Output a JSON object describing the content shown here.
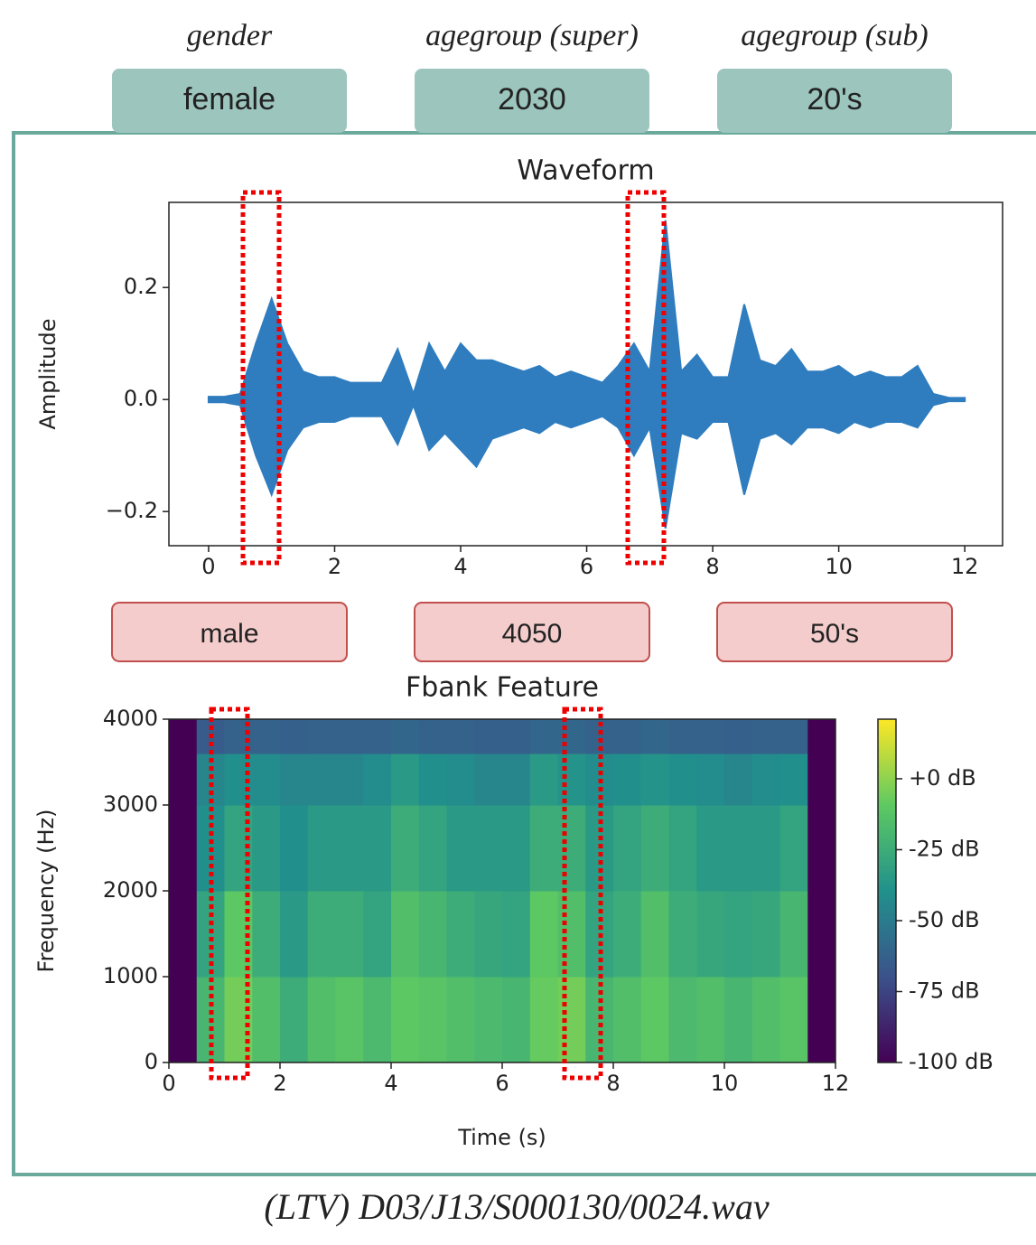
{
  "labels": [
    {
      "name": "gender",
      "value": "female"
    },
    {
      "name": "agegroup (super)",
      "value": "2030"
    },
    {
      "name": "agegroup (sub)",
      "value": "20's"
    }
  ],
  "predictions": [
    "male",
    "4050",
    "50's"
  ],
  "caption": "(LTV) D03/J13/S000130/0024.wav",
  "chart_data": [
    {
      "type": "area",
      "title": "Waveform",
      "y_label": "Amplitude",
      "x": [
        0,
        0.25,
        0.5,
        0.75,
        1,
        1.25,
        1.5,
        1.75,
        2,
        2.25,
        2.5,
        2.75,
        3,
        3.25,
        3.5,
        3.75,
        4,
        4.25,
        4.5,
        4.75,
        5,
        5.25,
        5.5,
        5.75,
        6,
        6.25,
        6.5,
        6.75,
        7,
        7.25,
        7.5,
        7.75,
        8,
        8.25,
        8.5,
        8.75,
        9,
        9.25,
        9.5,
        9.75,
        10,
        10.25,
        10.5,
        10.75,
        11,
        11.25,
        11.5,
        11.75,
        12
      ],
      "series": [
        {
          "color": "#2f7dbf",
          "values": [
            0.005,
            0.005,
            0.01,
            0.1,
            0.18,
            0.1,
            0.05,
            0.04,
            0.04,
            0.03,
            0.03,
            0.03,
            0.09,
            0.01,
            0.1,
            0.05,
            0.1,
            0.07,
            0.07,
            0.06,
            0.05,
            0.06,
            0.04,
            0.05,
            0.04,
            0.03,
            0.06,
            0.1,
            0.05,
            0.32,
            0.05,
            0.08,
            0.04,
            0.04,
            0.17,
            0.07,
            0.06,
            0.09,
            0.05,
            0.05,
            0.06,
            0.04,
            0.05,
            0.04,
            0.04,
            0.06,
            0.01,
            0.003,
            0.003
          ]
        },
        {
          "color": "#2f7dbf",
          "values": [
            -0.005,
            -0.005,
            -0.01,
            -0.1,
            -0.17,
            -0.09,
            -0.05,
            -0.04,
            -0.04,
            -0.03,
            -0.03,
            -0.03,
            -0.08,
            -0.01,
            -0.09,
            -0.06,
            -0.09,
            -0.12,
            -0.07,
            -0.06,
            -0.05,
            -0.06,
            -0.04,
            -0.05,
            -0.04,
            -0.03,
            -0.05,
            -0.1,
            -0.05,
            -0.23,
            -0.06,
            -0.07,
            -0.04,
            -0.04,
            -0.17,
            -0.07,
            -0.06,
            -0.08,
            -0.05,
            -0.05,
            -0.06,
            -0.04,
            -0.05,
            -0.04,
            -0.04,
            -0.05,
            -0.01,
            -0.003,
            -0.003
          ]
        }
      ],
      "xlim": [
        -0.63,
        12.6
      ],
      "xticks": [
        0,
        2,
        4,
        6,
        8,
        10,
        12
      ],
      "ylim": [
        -0.261,
        0.352
      ],
      "yticks": [
        {
          "value": -0.2,
          "label": "−0.2"
        },
        {
          "value": 0,
          "label": "0.0"
        },
        0.2
      ]
    },
    {
      "type": "heatmap",
      "title": "Fbank Feature",
      "x_label": "Time (s)",
      "y_label": "Frequency (Hz)",
      "x_edges": [
        0,
        0.5,
        1,
        1.5,
        2,
        2.5,
        3,
        3.5,
        4,
        4.5,
        5,
        5.5,
        6,
        6.5,
        7,
        7.5,
        8,
        8.5,
        9,
        9.5,
        10,
        10.5,
        11,
        11.5,
        12
      ],
      "y_edges": [
        0,
        1000,
        2000,
        3000,
        3600,
        4000
      ],
      "z": [
        [
          -100,
          -20,
          -5,
          -15,
          -25,
          -15,
          -12,
          -18,
          -10,
          -12,
          -15,
          -18,
          -20,
          -8,
          -5,
          -20,
          -15,
          -10,
          -18,
          -15,
          -20,
          -15,
          -12,
          -100
        ],
        [
          -100,
          -30,
          -10,
          -25,
          -35,
          -25,
          -25,
          -30,
          -15,
          -20,
          -25,
          -28,
          -30,
          -10,
          -15,
          -30,
          -25,
          -15,
          -25,
          -28,
          -30,
          -28,
          -20,
          -100
        ],
        [
          -100,
          -40,
          -30,
          -35,
          -40,
          -35,
          -35,
          -35,
          -25,
          -30,
          -35,
          -35,
          -35,
          -25,
          -25,
          -35,
          -30,
          -25,
          -30,
          -35,
          -35,
          -35,
          -30,
          -100
        ],
        [
          -100,
          -45,
          -40,
          -42,
          -45,
          -45,
          -45,
          -42,
          -35,
          -40,
          -42,
          -45,
          -45,
          -35,
          -38,
          -42,
          -40,
          -38,
          -40,
          -42,
          -45,
          -42,
          -40,
          -100
        ],
        [
          -100,
          -65,
          -62,
          -62,
          -63,
          -62,
          -62,
          -62,
          -60,
          -62,
          -62,
          -63,
          -63,
          -60,
          -60,
          -62,
          -62,
          -60,
          -62,
          -62,
          -63,
          -62,
          -62,
          -100
        ]
      ],
      "xlim": [
        0,
        12
      ],
      "xticks": [
        0,
        2,
        4,
        6,
        8,
        10,
        12
      ],
      "ylim": [
        0,
        4000
      ],
      "yticks": [
        0,
        1000,
        2000,
        3000,
        4000
      ],
      "clim": [
        -100,
        21
      ],
      "cticks": [
        {
          "value": 0,
          "label": "+0 dB"
        },
        {
          "value": -25,
          "label": "-25 dB"
        },
        {
          "value": -50,
          "label": "-50 dB"
        },
        {
          "value": -75,
          "label": "-75 dB"
        },
        {
          "value": -100,
          "label": "-100 dB"
        }
      ],
      "colormap": "viridis"
    }
  ]
}
